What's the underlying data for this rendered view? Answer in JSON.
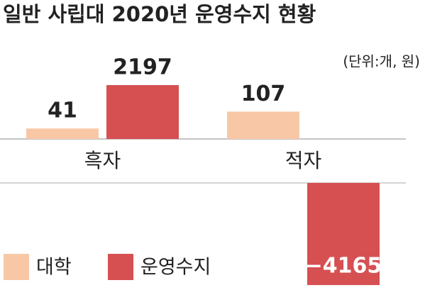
{
  "chart_data": {
    "type": "bar",
    "title": "일반 사립대 2020년 운영수지 현황",
    "subtitle": "(단위:개, 원)",
    "categories": [
      "흑자",
      "적자"
    ],
    "series": [
      {
        "name": "대학",
        "color": "#f8c8a6",
        "values": [
          41,
          107
        ],
        "axis": "y2"
      },
      {
        "name": "운영수지",
        "color": "#d65052",
        "values": [
          2197,
          -4165
        ],
        "value_labels": [
          "2197",
          "−4165"
        ]
      }
    ],
    "ylim": [
      -4300,
      2400
    ],
    "y2lim": [
      -400,
      230
    ],
    "legend": "bottom-left"
  }
}
